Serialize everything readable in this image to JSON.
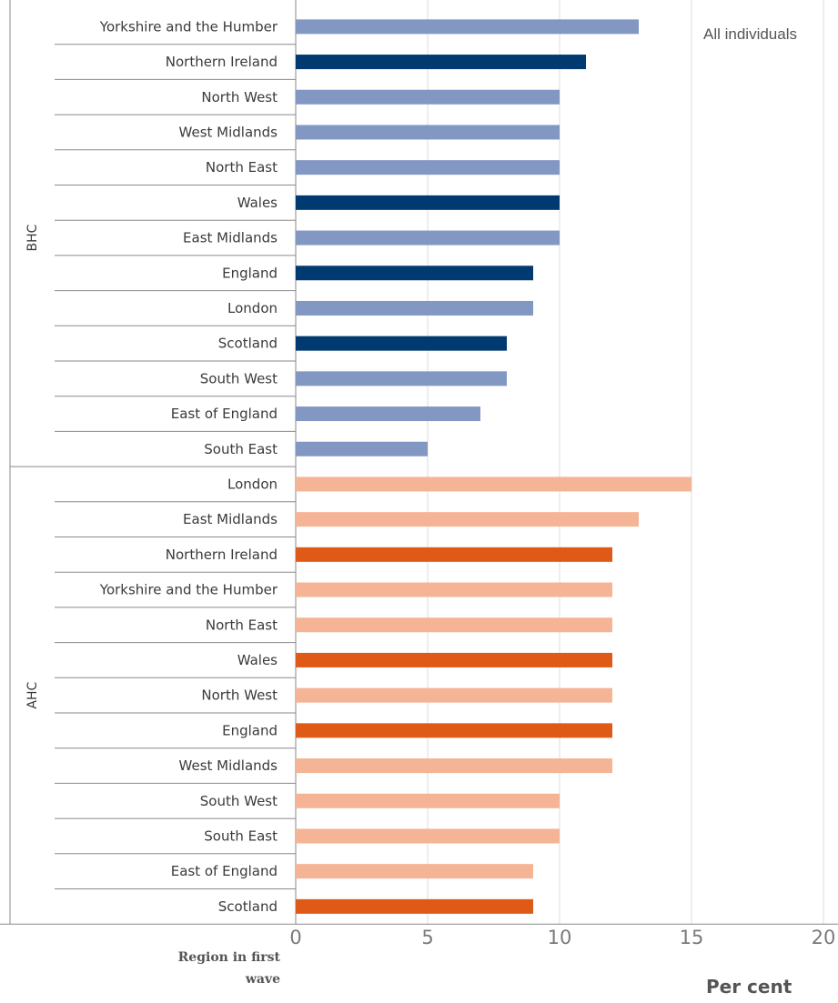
{
  "chart_data": {
    "type": "bar",
    "orientation": "horizontal",
    "annotation": "All individuals",
    "xlabel": "Per cent",
    "ylabel": "Region in first wave",
    "xlim": [
      0,
      20
    ],
    "xticks": [
      "0",
      "5",
      "10",
      "15",
      "20"
    ],
    "grid": "vertical gridlines at each x tick",
    "colors": {
      "BHC_highlight": "#003a70",
      "BHC_other": "#8297c2",
      "AHC_highlight": "#e05a17",
      "AHC_other": "#f4b495"
    },
    "groups": [
      {
        "name": "BHC",
        "categories": [
          "Yorkshire and the Humber",
          "Northern Ireland",
          "North West",
          "West Midlands",
          "North East",
          "Wales",
          "East Midlands",
          "England",
          "London",
          "Scotland",
          "South West",
          "East of England",
          "South East"
        ],
        "values": [
          13,
          11,
          10,
          10,
          10,
          10,
          10,
          9,
          9,
          8,
          8,
          7,
          5
        ],
        "highlight": [
          false,
          true,
          false,
          false,
          false,
          true,
          false,
          true,
          false,
          true,
          false,
          false,
          false
        ]
      },
      {
        "name": "AHC",
        "categories": [
          "London",
          "East Midlands",
          "Northern Ireland",
          "Yorkshire and the Humber",
          "North East",
          "Wales",
          "North West",
          "England",
          "West Midlands",
          "South West",
          "South East",
          "East of England",
          "Scotland"
        ],
        "values": [
          15,
          13,
          12,
          12,
          12,
          12,
          12,
          12,
          12,
          10,
          10,
          9,
          9
        ],
        "highlight": [
          false,
          false,
          true,
          false,
          false,
          true,
          false,
          true,
          false,
          false,
          false,
          false,
          true
        ]
      }
    ]
  }
}
